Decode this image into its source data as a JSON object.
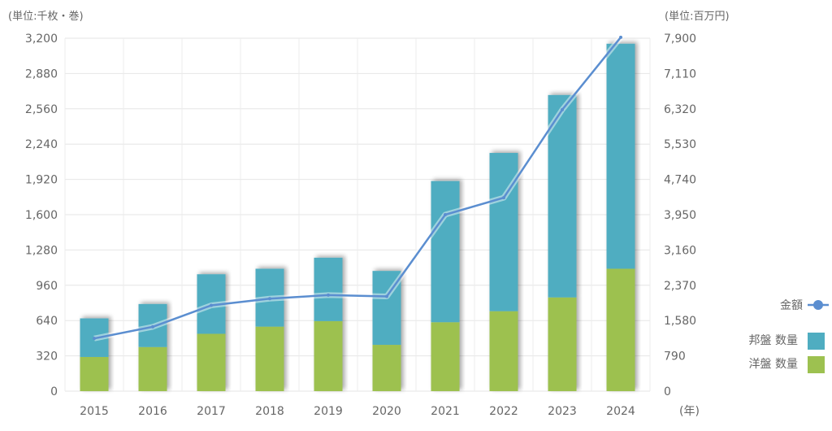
{
  "chart_data": {
    "type": "bar",
    "stacked": true,
    "title": "",
    "xlabel": "(年)",
    "ylabel_left": "(単位:千枚・巻)",
    "ylabel_right": "(単位:百万円)",
    "categories": [
      "2015",
      "2016",
      "2017",
      "2018",
      "2019",
      "2020",
      "2021",
      "2022",
      "2023",
      "2024"
    ],
    "ylim_left": [
      0,
      3200
    ],
    "ylim_right": [
      0,
      7900
    ],
    "yticks_left": [
      "0",
      "320",
      "640",
      "960",
      "1,280",
      "1,600",
      "1,920",
      "2,240",
      "2,560",
      "2,880",
      "3,200"
    ],
    "yticks_right": [
      "0",
      "790",
      "1,580",
      "2,370",
      "3,160",
      "3,950",
      "4,740",
      "5,530",
      "6,320",
      "7,110",
      "7,900"
    ],
    "grid": true,
    "legend_position": "right",
    "series": [
      {
        "name": "洋盤 数量",
        "type": "bar",
        "axis": "left",
        "color": "#9dc150",
        "values": [
          310,
          400,
          520,
          585,
          635,
          420,
          625,
          725,
          850,
          1110
        ]
      },
      {
        "name": "邦盤 数量",
        "type": "bar",
        "axis": "left",
        "color": "#4fadc1",
        "values": [
          350,
          390,
          540,
          525,
          575,
          670,
          1280,
          1435,
          1835,
          2040
        ]
      },
      {
        "name": "金額",
        "type": "line",
        "axis": "right",
        "color": "#5b8ed0",
        "values": [
          1180,
          1440,
          1920,
          2070,
          2150,
          2120,
          3950,
          4330,
          6300,
          7920
        ]
      }
    ]
  }
}
